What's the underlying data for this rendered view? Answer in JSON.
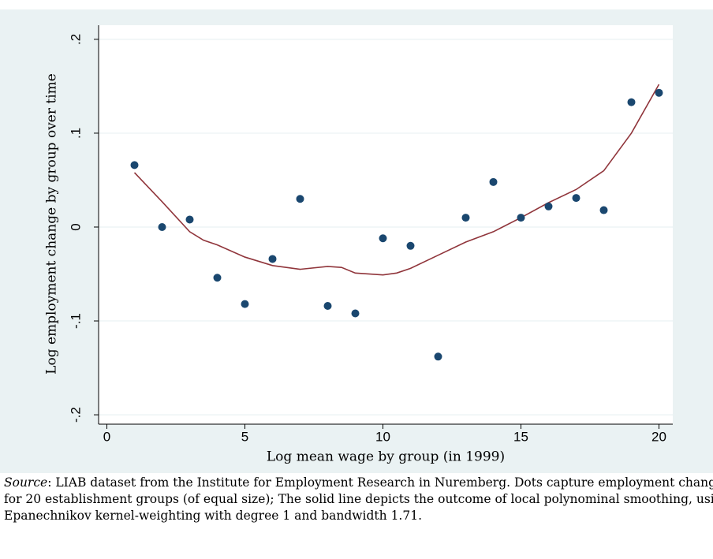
{
  "chart_data": {
    "type": "scatter",
    "x_label": "Log mean wage by group (in 1999)",
    "y_label": "Log employment change by group over time",
    "xlim": [
      -0.3,
      20.5
    ],
    "ylim": [
      -0.21,
      0.215
    ],
    "xticks": [
      0,
      5,
      10,
      15,
      20
    ],
    "yticks": [
      {
        "value": -0.2,
        "label": "-.2"
      },
      {
        "value": -0.1,
        "label": "-.1"
      },
      0,
      {
        "value": 0.1,
        "label": ".1"
      },
      {
        "value": 0.2,
        "label": ".2"
      }
    ],
    "grid": true,
    "series": [
      {
        "type": "scatter",
        "color": "#1a476f",
        "x": [
          1,
          2,
          3,
          4,
          5,
          6,
          7,
          8,
          9,
          10,
          11,
          12,
          13,
          14,
          15,
          16,
          17,
          18,
          19,
          20
        ],
        "values": [
          0.066,
          0,
          0.008,
          -0.054,
          -0.082,
          -0.034,
          0.03,
          -0.084,
          -0.092,
          -0.012,
          -0.02,
          -0.138,
          0.01,
          0.048,
          0.01,
          0.022,
          0.031,
          0.018,
          0.133,
          0.143
        ]
      },
      {
        "type": "line",
        "color": "#90353b",
        "x": [
          1,
          2,
          3,
          3.5,
          4,
          5,
          6,
          7,
          8,
          8.5,
          9,
          10,
          10.5,
          11,
          12,
          13,
          14,
          15,
          16,
          17,
          18,
          19,
          20
        ],
        "values": [
          0.058,
          0.027,
          -0.005,
          -0.014,
          -0.019,
          -0.032,
          -0.041,
          -0.045,
          -0.042,
          -0.043,
          -0.049,
          -0.051,
          -0.049,
          -0.044,
          -0.03,
          -0.016,
          -0.005,
          0.01,
          0.026,
          0.04,
          0.06,
          0.1,
          0.152
        ]
      }
    ],
    "note_label": "Source",
    "note": ": LIAB dataset from the Institute for Employment Research in Nuremberg. Dots capture employment changes for 20 establishment groups (of equal size); The solid line depicts the outcome of local polynominal smoothing, using Epanechnikov kernel-weighting with degree 1 and bandwidth 1.71."
  }
}
